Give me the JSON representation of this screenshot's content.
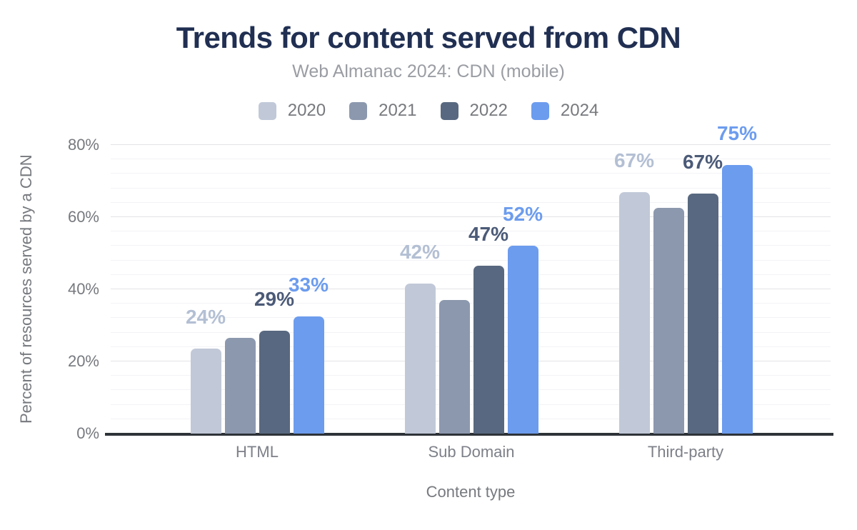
{
  "header": {
    "title": "Trends for content served from CDN",
    "subtitle": "Web Almanac 2024: CDN (mobile)"
  },
  "chart_data": {
    "type": "bar",
    "title": "Trends for content served from CDN",
    "subtitle": "Web Almanac 2024: CDN (mobile)",
    "xlabel": "Content type",
    "ylabel": "Percent of resources served by a CDN",
    "categories": [
      "HTML",
      "Sub Domain",
      "Third-party"
    ],
    "series": [
      {
        "name": "2020",
        "color": "#c1c9d8",
        "label_color": "#b3bfd3",
        "values": [
          23.5,
          41.5,
          67
        ],
        "labels": [
          "24%",
          "42%",
          "67%"
        ]
      },
      {
        "name": "2021",
        "color": "#8c98ae",
        "label_color": null,
        "values": [
          26.5,
          37,
          62.5
        ],
        "labels": [
          null,
          null,
          null
        ]
      },
      {
        "name": "2022",
        "color": "#586880",
        "label_color": "#4b5a77",
        "values": [
          28.5,
          46.5,
          66.5
        ],
        "labels": [
          "29%",
          "47%",
          "67%"
        ]
      },
      {
        "name": "2024",
        "color": "#6c9cee",
        "label_color": "#6c9cee",
        "values": [
          32.5,
          52,
          74.5
        ],
        "labels": [
          "33%",
          "52%",
          "75%"
        ]
      }
    ],
    "y_ticks": [
      {
        "label": "0%",
        "value": 0
      },
      {
        "label": "20%",
        "value": 20
      },
      {
        "label": "40%",
        "value": 40
      },
      {
        "label": "60%",
        "value": 60
      },
      {
        "label": "80%",
        "value": 80
      }
    ],
    "ylim": [
      0,
      80
    ],
    "grid": {
      "major_step": 20,
      "minor_step": 4,
      "grid_on": true
    },
    "legend_position": "top"
  },
  "colors": {
    "title": "#202f52",
    "subtitle": "#9a9da3",
    "axis_text": "#76797e",
    "axis_line": "#2e3338",
    "grid_major": "#e3e3e7",
    "grid_minor": "#f3f3f6",
    "background": "#ffffff"
  }
}
